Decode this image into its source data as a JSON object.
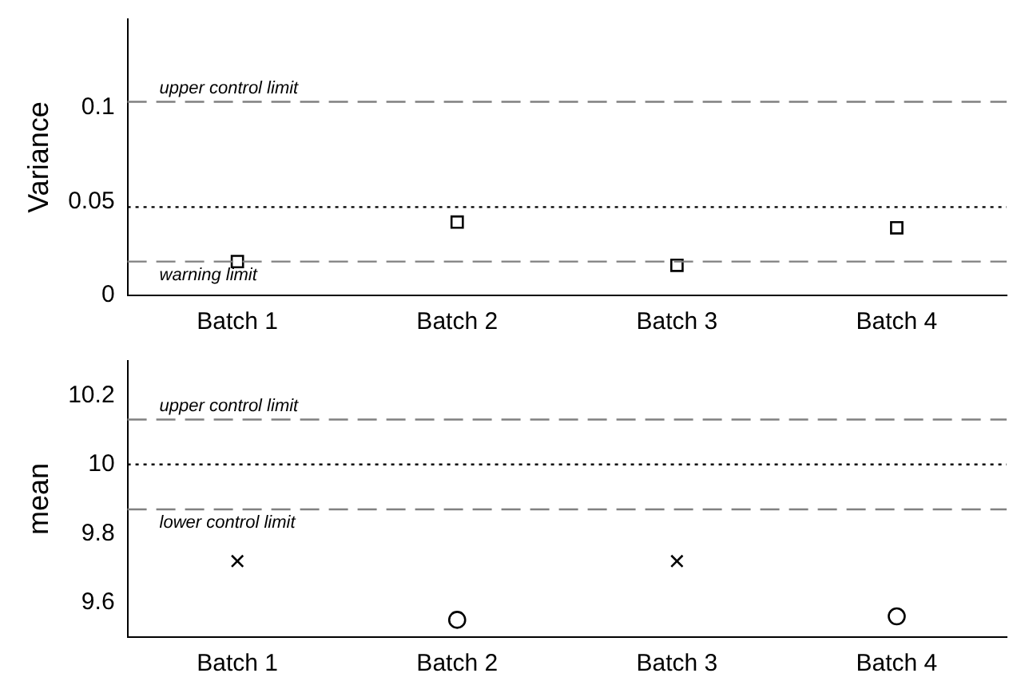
{
  "chart_data": [
    {
      "type": "scatter",
      "ylabel": "Variance",
      "categories": [
        "Batch 1",
        "Batch 2",
        "Batch 3",
        "Batch 4"
      ],
      "series": [
        {
          "color": "#000000",
          "marker": "square",
          "values": [
            0.018,
            0.039,
            0.016,
            0.036
          ]
        }
      ],
      "ylim": [
        0,
        0.147
      ],
      "yticks": [
        0,
        0.05,
        0.1
      ],
      "grid": false,
      "legend": false,
      "ref_lines": [
        {
          "axis": "y",
          "value": 0.103,
          "label": "upper control limit",
          "color": "#808080",
          "line_style": "dashed"
        },
        {
          "axis": "y",
          "value": 0.047,
          "label": null,
          "color": "#000000",
          "line_style": "dotted"
        },
        {
          "axis": "y",
          "value": 0.018,
          "label": "warning limit",
          "color": "#808080",
          "line_style": "dashed"
        }
      ]
    },
    {
      "type": "scatter",
      "ylabel": "mean",
      "categories": [
        "Batch 1",
        "Batch 2",
        "Batch 3",
        "Batch 4"
      ],
      "series": [
        {
          "color": "#000000",
          "marker": "cross",
          "values": [
            9.72,
            null,
            9.72,
            null
          ]
        },
        {
          "color": "#000000",
          "marker": "circle",
          "values": [
            null,
            9.55,
            null,
            9.56
          ]
        }
      ],
      "ylim": [
        9.5,
        10.3
      ],
      "yticks": [
        9.6,
        9.8,
        10,
        10.2
      ],
      "grid": false,
      "legend": false,
      "ref_lines": [
        {
          "axis": "y",
          "value": 10.13,
          "label": "upper control limit",
          "color": "#808080",
          "line_style": "dashed"
        },
        {
          "axis": "y",
          "value": 10,
          "label": null,
          "color": "#000000",
          "line_style": "dotted"
        },
        {
          "axis": "y",
          "value": 9.87,
          "label": "lower control limit",
          "color": "#808080",
          "line_style": "dashed"
        }
      ]
    }
  ]
}
